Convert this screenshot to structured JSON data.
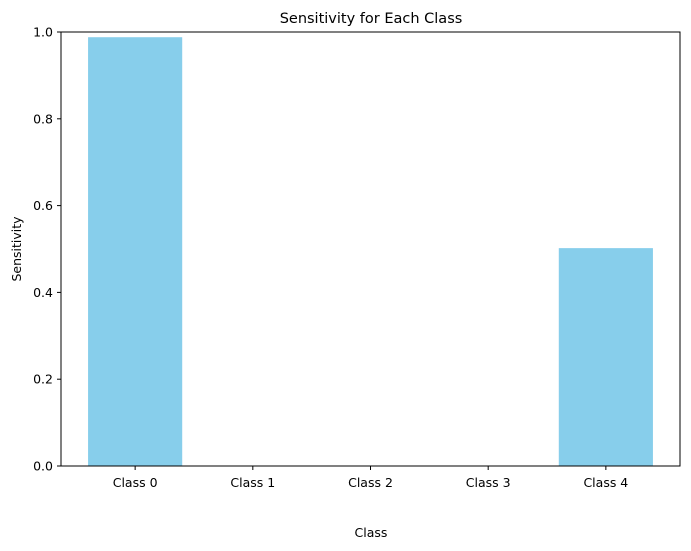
{
  "chart_data": {
    "type": "bar",
    "title": "Sensitivity for Each Class",
    "xlabel": "Class",
    "ylabel": "Sensitivity",
    "categories": [
      "Class 0",
      "Class 1",
      "Class 2",
      "Class 3",
      "Class 4"
    ],
    "values": [
      0.988,
      0.0,
      0.0,
      0.0,
      0.502
    ],
    "ylim": [
      0,
      1
    ],
    "yticks": [
      "0.0",
      "0.2",
      "0.4",
      "0.6",
      "0.8",
      "1.0"
    ],
    "bar_color": "#87ceeb",
    "grid": false,
    "legend": "none"
  }
}
